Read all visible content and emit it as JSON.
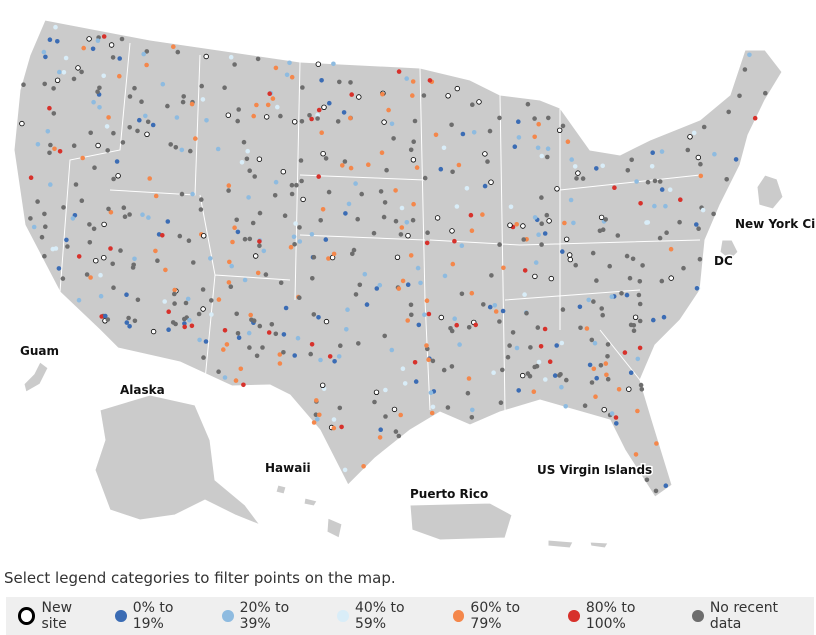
{
  "map": {
    "labels": [
      {
        "text": "Guam"
      },
      {
        "text": "Alaska"
      },
      {
        "text": "Hawaii"
      },
      {
        "text": "Puerto Rico"
      },
      {
        "text": "US Virgin Islands"
      },
      {
        "text": "New York Ci"
      },
      {
        "text": "DC"
      }
    ],
    "instruction": "Select legend categories to filter points on the map.",
    "legend": [
      {
        "label": "New site",
        "color": "#ffffff",
        "stroke": "#000000"
      },
      {
        "label": "0% to 19%",
        "color": "#3b6cb4"
      },
      {
        "label": "20% to 39%",
        "color": "#8ebbe0"
      },
      {
        "label": "40% to 59%",
        "color": "#d9edf8"
      },
      {
        "label": "60% to 79%",
        "color": "#f4874b"
      },
      {
        "label": "80% to 100%",
        "color": "#d7312b"
      },
      {
        "label": "No recent data",
        "color": "#6d6d6d"
      }
    ]
  }
}
